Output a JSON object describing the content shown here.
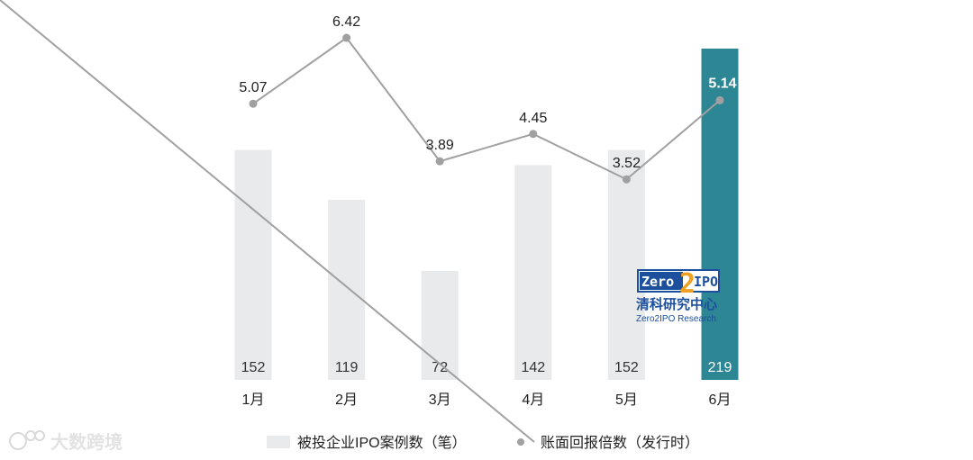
{
  "chart_data": {
    "type": "bar",
    "categories": [
      "1月",
      "2月",
      "3月",
      "4月",
      "5月",
      "6月"
    ],
    "series": [
      {
        "name": "被投企业IPO案例数（笔）",
        "type": "bar",
        "values": [
          152,
          119,
          72,
          142,
          152,
          219
        ]
      },
      {
        "name": "账面回报倍数（发行时）",
        "type": "line",
        "values": [
          5.07,
          6.42,
          3.89,
          4.45,
          3.52,
          5.14
        ]
      }
    ],
    "highlight_index": 5,
    "colors": {
      "bar": "#e8eaec",
      "bar_highlight": "#2d8693",
      "line": "#a0a0a0",
      "marker": "#a0a0a0"
    },
    "grid": false,
    "legend_position": "bottom"
  },
  "watermark": {
    "logo_text": "Zero2IPO",
    "cn_name": "清科研究中心",
    "en_name": "Zero2IPO Research",
    "corner_text": "大数跨境"
  }
}
